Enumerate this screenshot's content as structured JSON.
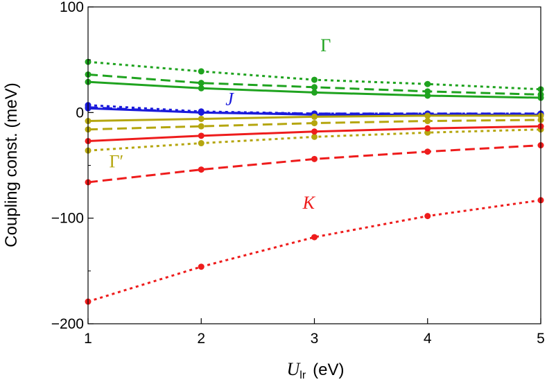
{
  "chart_data": {
    "type": "line",
    "title": "",
    "xlabel": {
      "main": "U",
      "sub": "lr",
      "unit": "(eV)"
    },
    "ylabel": "Coupling const. (meV)",
    "xlim": [
      1,
      5
    ],
    "ylim": [
      -200,
      100
    ],
    "xticks": [
      "1",
      "2",
      "3",
      "4",
      "5"
    ],
    "yticks": [
      "100",
      "0",
      "−100",
      "−200"
    ],
    "ytick_values": [
      100,
      0,
      -100,
      -200
    ],
    "grid": false,
    "x": [
      1,
      2,
      3,
      4,
      5
    ],
    "colors": {
      "Gamma": "#1fa31f",
      "J": "#1a1adb",
      "GammaPrime": "#b5a60f",
      "K": "#ee1c1c"
    },
    "labels": [
      {
        "text": "Γ",
        "color": "#1fa31f",
        "italic": false,
        "x": 3.1,
        "y": 58
      },
      {
        "text": "J",
        "color": "#1a1adb",
        "italic": true,
        "x": 2.25,
        "y": 7
      },
      {
        "text": "Γ′",
        "color": "#b5a60f",
        "italic": false,
        "x": 1.25,
        "y": -52
      },
      {
        "text": "K",
        "color": "#ee1c1c",
        "italic": true,
        "x": 2.95,
        "y": -91
      }
    ],
    "series": [
      {
        "group": "Gamma",
        "style": "dotted",
        "values": [
          48,
          39,
          31,
          27,
          22
        ]
      },
      {
        "group": "Gamma",
        "style": "dashed",
        "values": [
          36,
          28,
          24,
          20,
          17
        ]
      },
      {
        "group": "Gamma",
        "style": "solid",
        "values": [
          29,
          23,
          19,
          16,
          14
        ]
      },
      {
        "group": "J",
        "style": "dotted",
        "values": [
          7,
          1,
          -1,
          -1,
          -1
        ]
      },
      {
        "group": "J",
        "style": "dashed",
        "values": [
          5,
          0,
          -1,
          -1,
          -1
        ]
      },
      {
        "group": "J",
        "style": "solid",
        "values": [
          4,
          0,
          -2,
          -2,
          -2
        ]
      },
      {
        "group": "GammaPrime",
        "style": "solid",
        "values": [
          -8,
          -6,
          -4,
          -3,
          -3
        ]
      },
      {
        "group": "GammaPrime",
        "style": "dashed",
        "values": [
          -16,
          -13,
          -10,
          -8,
          -7
        ]
      },
      {
        "group": "GammaPrime",
        "style": "dotted",
        "values": [
          -36,
          -29,
          -23,
          -19,
          -16
        ]
      },
      {
        "group": "K",
        "style": "solid",
        "values": [
          -27,
          -22,
          -18,
          -15,
          -13
        ]
      },
      {
        "group": "K",
        "style": "dashed",
        "values": [
          -66,
          -54,
          -44,
          -37,
          -31
        ]
      },
      {
        "group": "K",
        "style": "dotted",
        "values": [
          -179,
          -146,
          -118,
          -98,
          -83
        ]
      }
    ]
  }
}
